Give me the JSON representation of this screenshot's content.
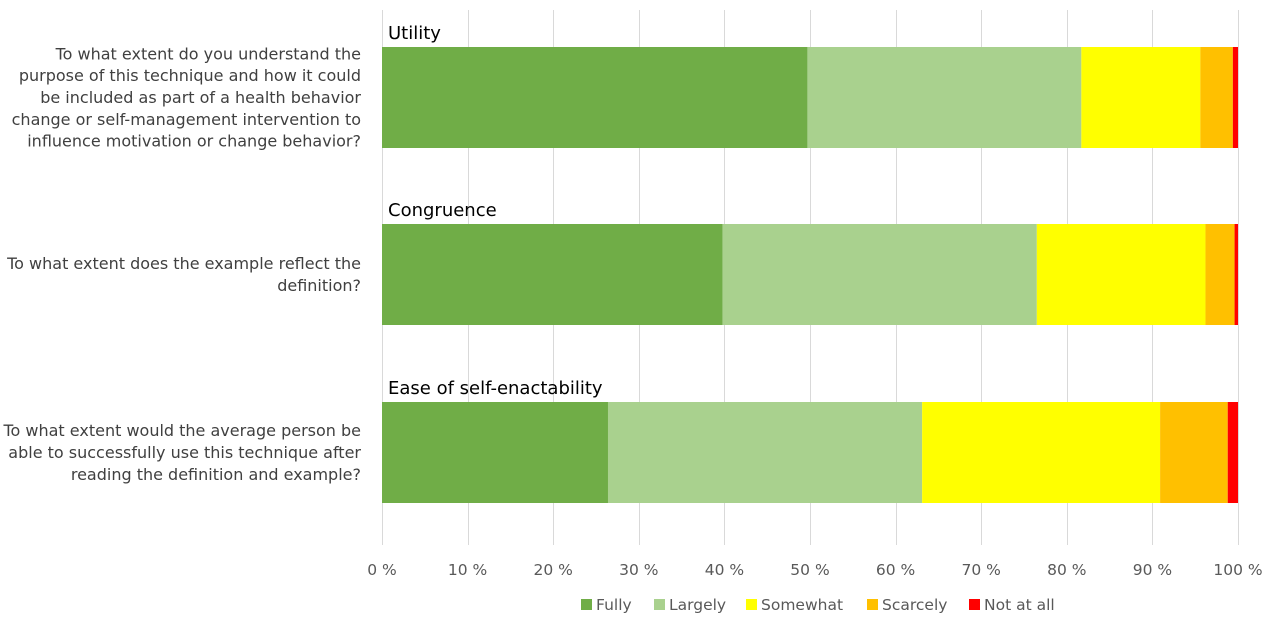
{
  "chart_data": {
    "type": "bar",
    "orientation": "horizontal",
    "stacked": "percent",
    "x_ticks": [
      "0 %",
      "10 %",
      "20 %",
      "30 %",
      "40 %",
      "50 %",
      "60 %",
      "70 %",
      "80 %",
      "90 %",
      "100 %"
    ],
    "xlim": [
      0,
      100
    ],
    "grid": true,
    "legend_position": "bottom",
    "groups": [
      {
        "title": "Utility",
        "question": [
          "To what extent do you understand the",
          "purpose of this technique and how it could",
          "be included as part of a health behavior",
          "change or self-management intervention to",
          "influence motivation or change behavior?"
        ],
        "values": [
          49.7,
          32.0,
          13.9,
          3.8,
          0.6
        ]
      },
      {
        "title": "Congruence",
        "question": [
          "To what extent does the example reflect the",
          "definition?"
        ],
        "values": [
          39.8,
          36.7,
          19.7,
          3.4,
          0.4
        ]
      },
      {
        "title": "Ease of self-enactability",
        "question": [
          "To what extent would the average person be",
          "able to successfully use this technique after",
          "reading the definition and example?"
        ],
        "values": [
          26.4,
          36.7,
          27.8,
          7.9,
          1.2
        ]
      }
    ],
    "series": [
      {
        "name": "Fully",
        "color": "#70ad47"
      },
      {
        "name": "Largely",
        "color": "#a9d18e"
      },
      {
        "name": "Somewhat",
        "color": "#ffff00"
      },
      {
        "name": "Scarcely",
        "color": "#ffc000"
      },
      {
        "name": "Not at all",
        "color": "#ff0000"
      }
    ]
  }
}
